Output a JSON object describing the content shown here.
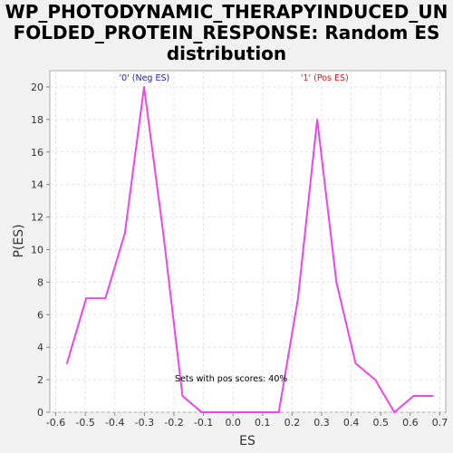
{
  "chart_data": {
    "type": "line",
    "title_lines": [
      "WP_PHOTODYNAMIC_THERAPYINDUCED_UN",
      "FOLDED_PROTEIN_RESPONSE: Random ES",
      "distribution"
    ],
    "xlabel": "ES",
    "ylabel": "P(ES)",
    "xlim": [
      -0.62,
      0.72
    ],
    "ylim": [
      0,
      21
    ],
    "xticks": [
      -0.6,
      -0.5,
      -0.4,
      -0.3,
      -0.2,
      -0.1,
      0.0,
      0.1,
      0.2,
      0.3,
      0.4,
      0.5,
      0.6,
      0.7
    ],
    "xtick_labels": [
      "-0.6",
      "-0.5",
      "-0.4",
      "-0.3",
      "-0.2",
      "-0.1",
      "0.0",
      "0.1",
      "0.2",
      "0.3",
      "0.4",
      "0.5",
      "0.6",
      "0.7"
    ],
    "yticks": [
      0,
      2,
      4,
      6,
      8,
      10,
      12,
      14,
      16,
      18,
      20
    ],
    "ytick_labels": [
      "0",
      "2",
      "4",
      "6",
      "8",
      "10",
      "12",
      "14",
      "16",
      "18",
      "20"
    ],
    "grid": true,
    "series": [
      {
        "color": "#ee44ee",
        "x": [
          -0.562,
          -0.497,
          -0.432,
          -0.366,
          -0.301,
          -0.236,
          -0.171,
          -0.106,
          -0.04,
          0.025,
          0.09,
          0.155,
          0.22,
          0.285,
          0.35,
          0.415,
          0.481,
          0.546,
          0.611,
          0.676
        ],
        "y": [
          3,
          7,
          7,
          11,
          20,
          11,
          1,
          0,
          0,
          0,
          0,
          0,
          7,
          18,
          8,
          3,
          2,
          0,
          1,
          1
        ]
      }
    ],
    "annotations": [
      {
        "text": "'0' (Neg ES)",
        "x": -0.3,
        "y": 20.4,
        "color": "#2222bb"
      },
      {
        "text": "'1' (Pos ES)",
        "x": 0.31,
        "y": 20.4,
        "color": "#cc2222"
      },
      {
        "text": "Sets with pos scores: 40%",
        "x": -0.006,
        "y": 1.9,
        "color": "#000000"
      }
    ]
  }
}
